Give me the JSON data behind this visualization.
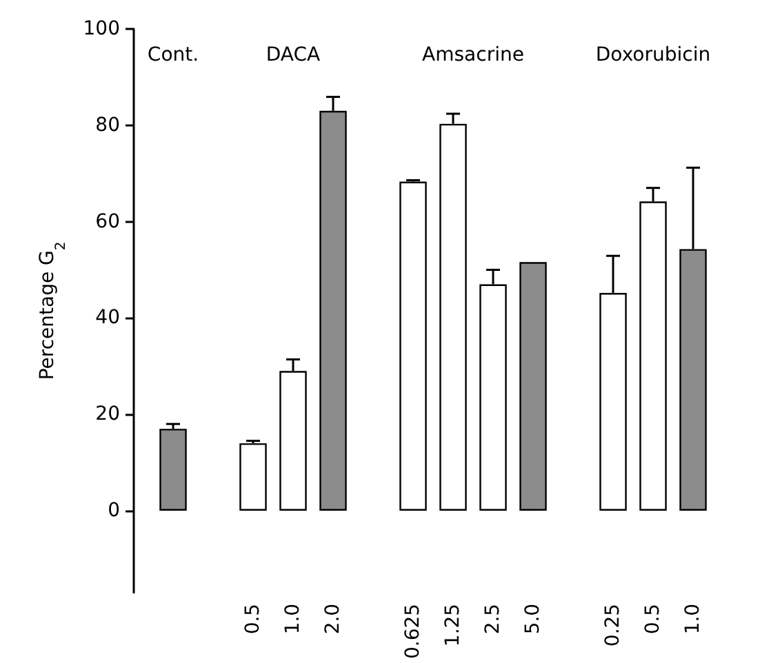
{
  "chart_data": {
    "type": "bar",
    "ylabel": "Percentage G$_{2}$",
    "categories": [
      null,
      null,
      "0.5",
      "1.0",
      "2.0",
      null,
      "0.625",
      "1.25",
      "2.5",
      "5.0",
      null,
      "0.25",
      "0.5",
      "1.0"
    ],
    "values": [
      17,
      null,
      14,
      29,
      83,
      null,
      68.3,
      80.3,
      47,
      51.6,
      null,
      45.2,
      64.2,
      54.3
    ],
    "errors": [
      [
        17,
        18
      ],
      null,
      [
        14,
        14.5
      ],
      [
        29,
        31.4
      ],
      [
        83,
        85.9
      ],
      null,
      [
        68.3,
        68.6
      ],
      [
        80.3,
        82.4
      ],
      [
        47,
        50
      ],
      null,
      null,
      [
        45.2,
        52.9
      ],
      [
        64.2,
        67
      ],
      [
        54.3,
        71.2
      ]
    ],
    "colors": [
      "#8c8c8c",
      null,
      "#ffffff",
      "#ffffff",
      "#8c8c8c",
      null,
      "#ffffff",
      "#ffffff",
      "#ffffff",
      "#8c8c8c",
      null,
      "#ffffff",
      "#ffffff",
      "#8c8c8c"
    ],
    "annotations": [
      "Cont.",
      "DACA",
      "Amsacrine",
      "Doxorubicin"
    ],
    "ylim": [
      -17,
      100
    ],
    "yticks": [
      0,
      20,
      40,
      60,
      80,
      100
    ],
    "grid": false
  }
}
